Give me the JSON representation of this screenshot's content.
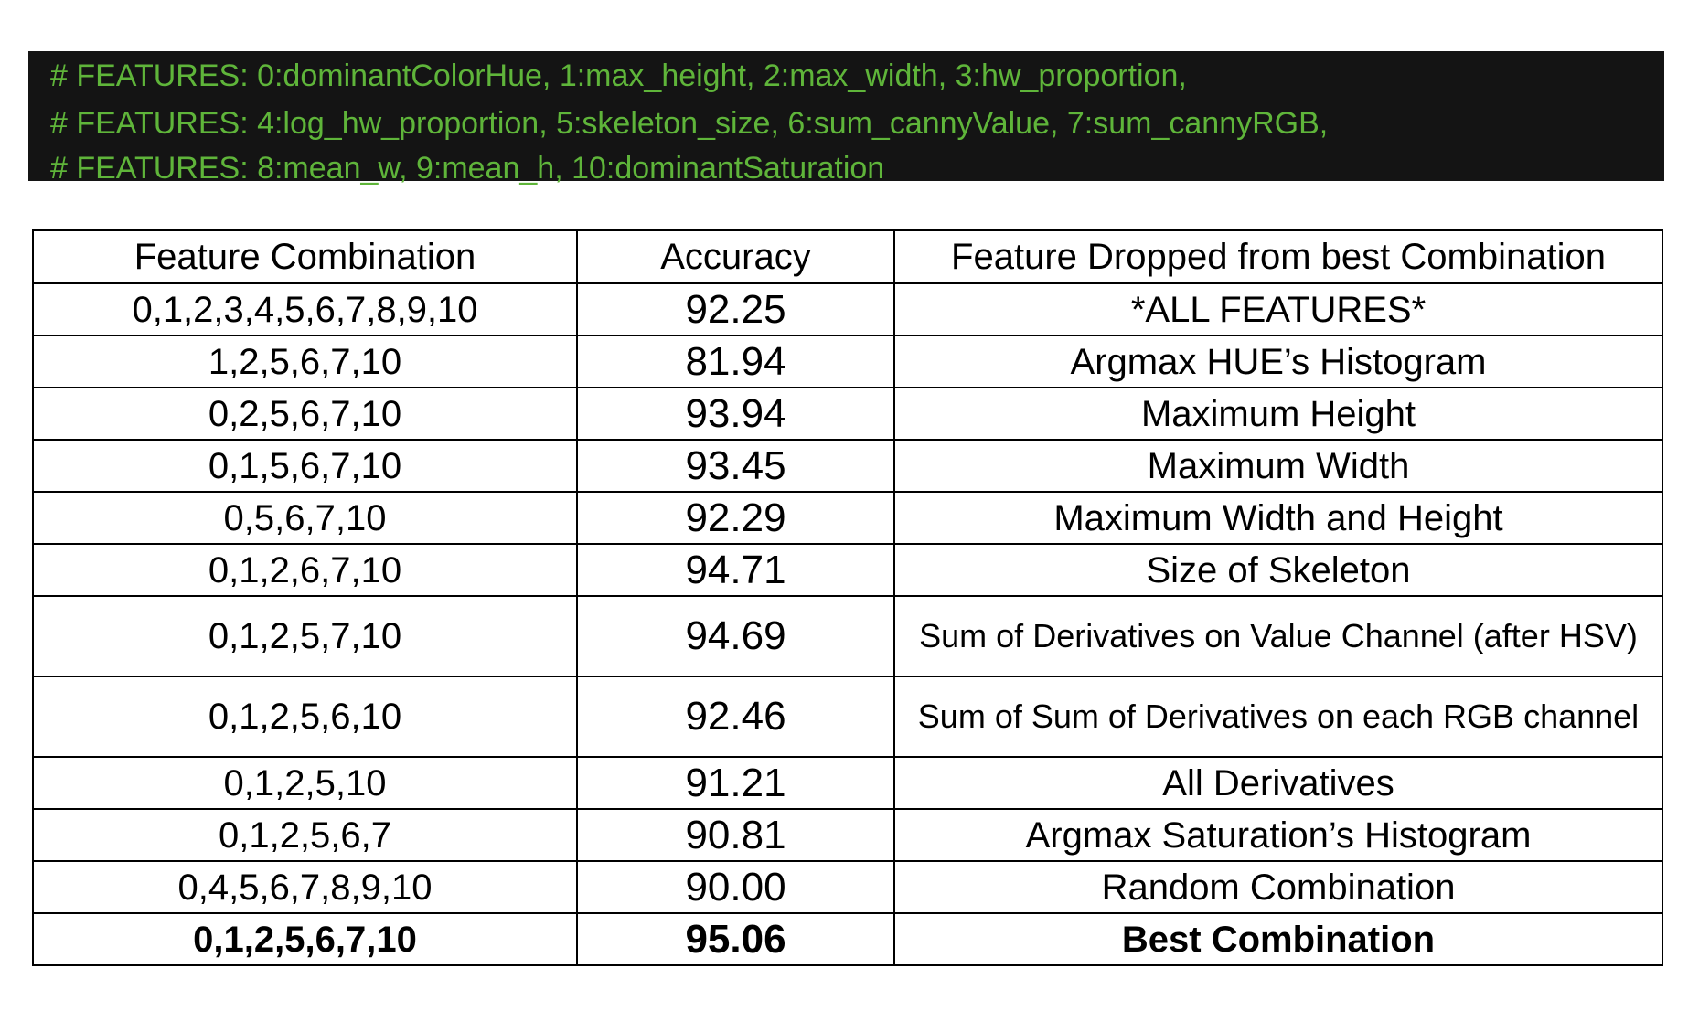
{
  "features_header": {
    "lines": [
      "# FEATURES: 0:dominantColorHue, 1:max_height, 2:max_width, 3:hw_proportion,",
      "# FEATURES: 4:log_hw_proportion, 5:skeleton_size, 6:sum_cannyValue, 7:sum_cannyRGB,",
      "# FEATURES: 8:mean_w, 9:mean_h, 10:dominantSaturation"
    ],
    "text_color": "#5fb53a",
    "background_color": "#141414"
  },
  "table": {
    "headers": [
      "Feature Combination",
      "Accuracy",
      "Feature Dropped from best Combination"
    ],
    "rows": [
      {
        "combination": "0,1,2,3,4,5,6,7,8,9,10",
        "accuracy": "92.25",
        "dropped": "*ALL FEATURES*"
      },
      {
        "combination": "1,2,5,6,7,10",
        "accuracy": "81.94",
        "dropped": "Argmax HUE’s Histogram"
      },
      {
        "combination": "0,2,5,6,7,10",
        "accuracy": "93.94",
        "dropped": "Maximum Height"
      },
      {
        "combination": "0,1,5,6,7,10",
        "accuracy": "93.45",
        "dropped": "Maximum Width"
      },
      {
        "combination": "0,5,6,7,10",
        "accuracy": "92.29",
        "dropped": "Maximum Width and Height"
      },
      {
        "combination": "0,1,2,6,7,10",
        "accuracy": "94.71",
        "dropped": "Size of Skeleton"
      },
      {
        "combination": "0,1,2,5,7,10",
        "accuracy": "94.69",
        "dropped": "Sum of Derivatives on Value Channel (after HSV)"
      },
      {
        "combination": "0,1,2,5,6,10",
        "accuracy": "92.46",
        "dropped": "Sum of Sum of Derivatives on each RGB channel"
      },
      {
        "combination": "0,1,2,5,10",
        "accuracy": "91.21",
        "dropped": "All Derivatives"
      },
      {
        "combination": "0,1,2,5,6,7",
        "accuracy": "90.81",
        "dropped": "Argmax Saturation’s Histogram"
      },
      {
        "combination": "0,4,5,6,7,8,9,10",
        "accuracy": "90.00",
        "dropped": "Random Combination"
      },
      {
        "combination": "0,1,2,5,6,7,10",
        "accuracy": "95.06",
        "dropped": "Best Combination"
      }
    ]
  }
}
